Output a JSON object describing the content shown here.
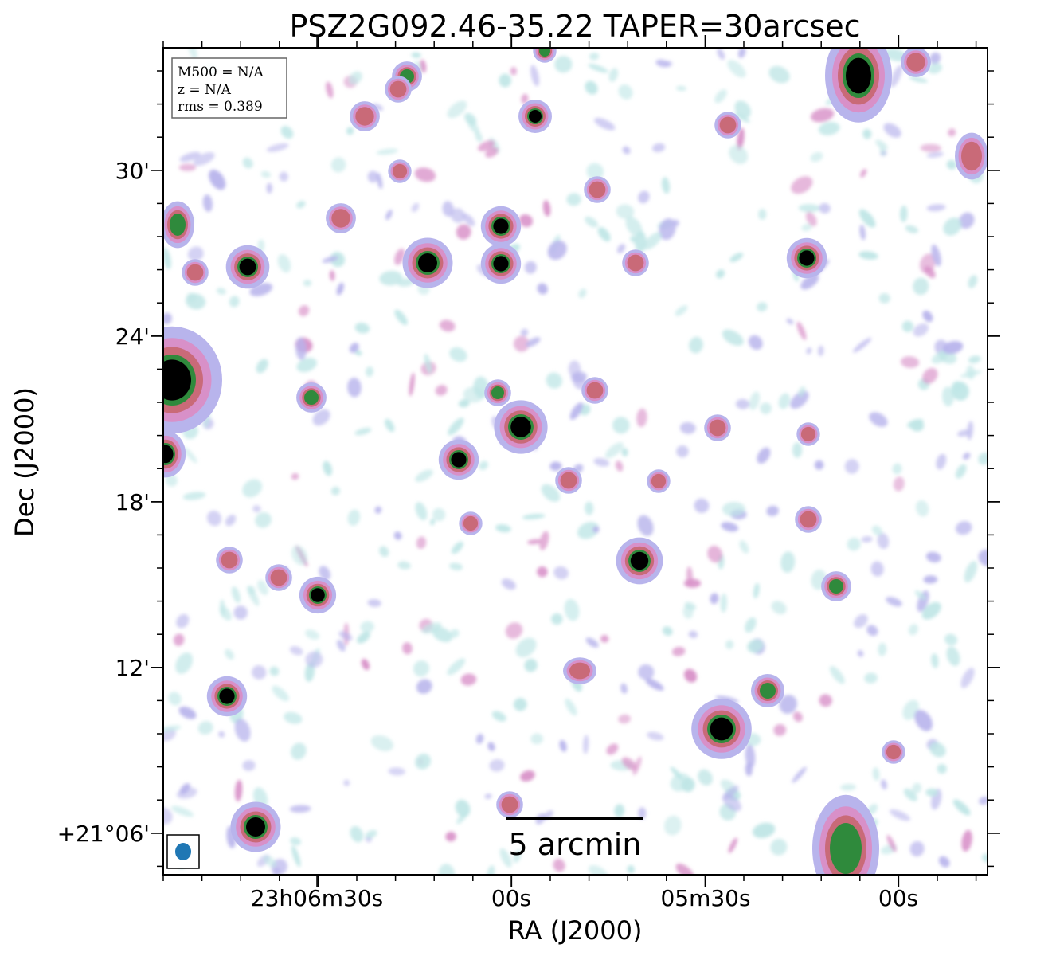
{
  "chart_data": {
    "type": "heatmap",
    "title": "PSZ2G092.46-35.22 TAPER=30arcsec",
    "xlabel": "RA (J2000)",
    "ylabel": "Dec (J2000)",
    "x_ticks": [
      "23h06m30s",
      "00s",
      "05m30s",
      "00s"
    ],
    "y_ticks": [
      "30'",
      "24'",
      "18'",
      "12'",
      "+21°06'"
    ],
    "info_box": [
      "M500 = N/A",
      "z = N/A",
      "rms = 0.389"
    ],
    "scalebar_label": "5 arcmin",
    "grid": false,
    "beam_color": "#1f77b4",
    "colormap": [
      "#ffffff",
      "#bfe6e6",
      "#b8b4ec",
      "#d890c8",
      "#c96a78",
      "#2f8a3c",
      "#000000"
    ]
  }
}
